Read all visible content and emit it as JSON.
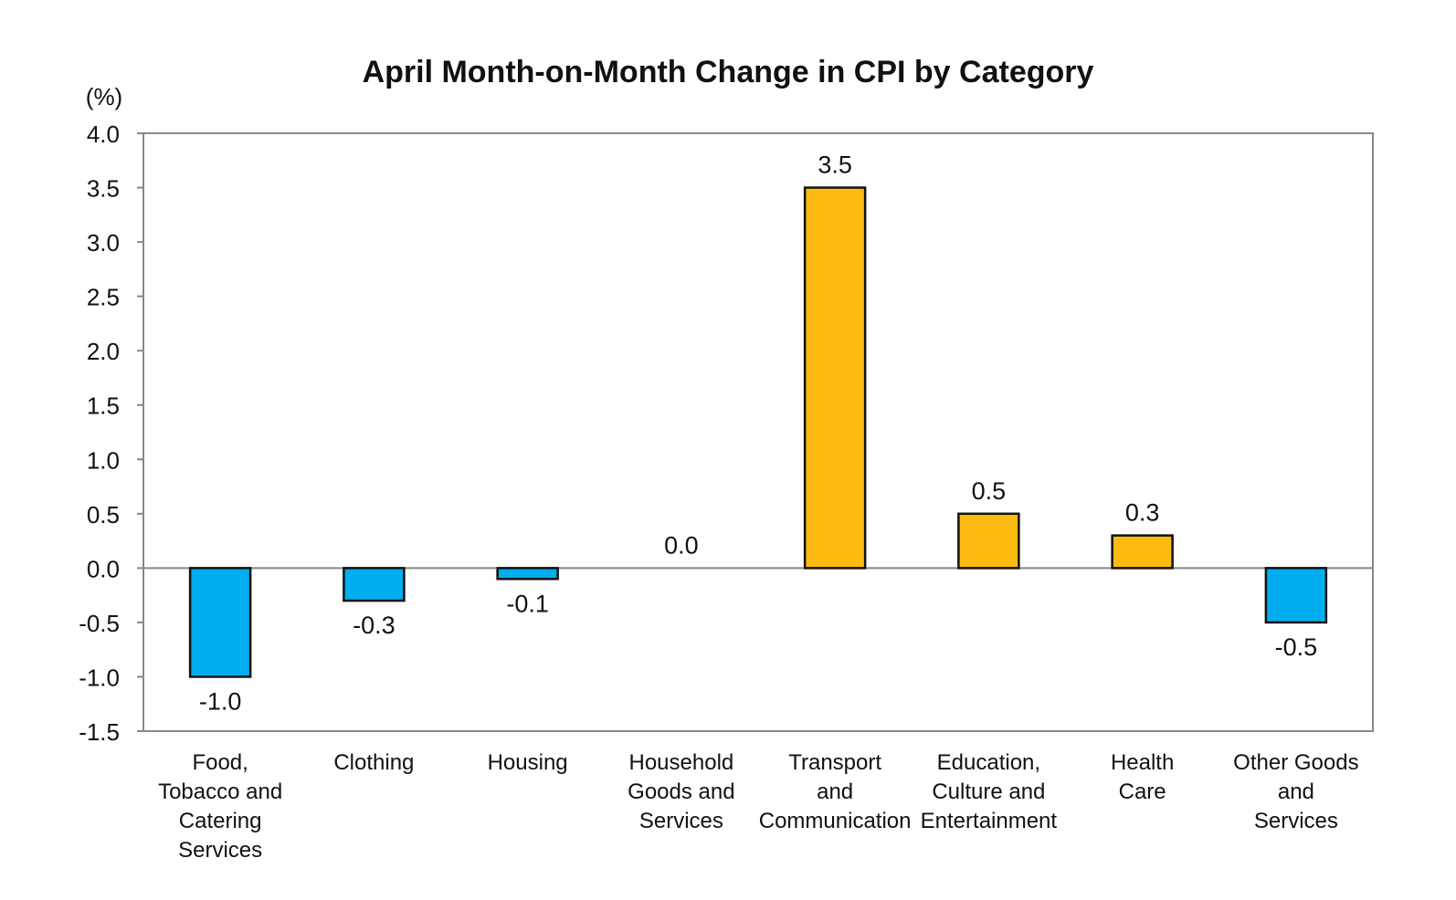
{
  "chart_data": {
    "type": "bar",
    "title": "April Month-on-Month Change in CPI by Category",
    "ylabel": "(%)",
    "xlabel": "",
    "ylim": [
      -1.5,
      4.0
    ],
    "yticks": [
      "4.0",
      "3.5",
      "3.0",
      "2.5",
      "2.0",
      "1.5",
      "1.0",
      "0.5",
      "0.0",
      "-0.5",
      "-1.0",
      "-1.5"
    ],
    "ytick_values": [
      4.0,
      3.5,
      3.0,
      2.5,
      2.0,
      1.5,
      1.0,
      0.5,
      0.0,
      -0.5,
      -1.0,
      -1.5
    ],
    "grid": false,
    "categories": [
      [
        "Food,",
        "Tobacco and",
        "Catering",
        "Services"
      ],
      [
        "Clothing"
      ],
      [
        "Housing"
      ],
      [
        "Household",
        "Goods and",
        "Services"
      ],
      [
        "Transport",
        "and",
        "Communication"
      ],
      [
        "Education,",
        "Culture and",
        "Entertainment"
      ],
      [
        "Health",
        "Care"
      ],
      [
        "Other Goods",
        "and",
        "Services"
      ]
    ],
    "values": [
      -1.0,
      -0.3,
      -0.1,
      0.0,
      3.5,
      0.5,
      0.3,
      -0.5
    ],
    "value_labels": [
      "-1.0",
      "-0.3",
      "-0.1",
      "0.0",
      "3.5",
      "0.5",
      "0.3",
      "-0.5"
    ],
    "colors": {
      "negative": "#00AEEF",
      "positive": "#FDBB11",
      "outline": "#111111",
      "axis": "#888888"
    }
  }
}
